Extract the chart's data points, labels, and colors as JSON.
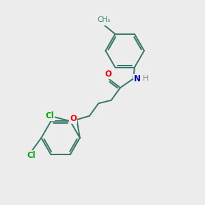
{
  "bg_color": "#ececec",
  "bond_color": "#3a7a6a",
  "bond_width": 1.5,
  "atom_colors": {
    "O": "#ff0000",
    "N": "#0000cc",
    "Cl": "#00aa00",
    "H": "#888888"
  },
  "font_size": 8.5
}
